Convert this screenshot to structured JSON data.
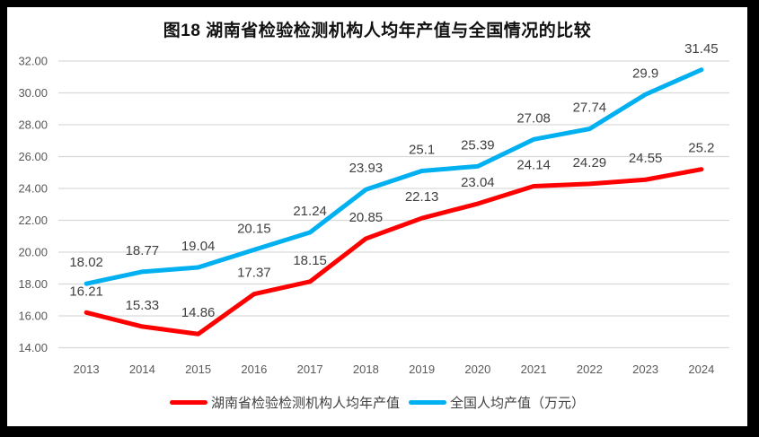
{
  "frame": {
    "background": "#000000",
    "content_background": "#ffffff"
  },
  "chart_data": {
    "type": "line",
    "title": "图18 湖南省检验检测机构人均年产值与全国情况的比较",
    "categories": [
      "2013",
      "2014",
      "2015",
      "2016",
      "2017",
      "2018",
      "2019",
      "2020",
      "2021",
      "2022",
      "2023",
      "2024"
    ],
    "series": [
      {
        "name": "湖南省检验检测机构人均年产值",
        "color": "#FF0000",
        "values": [
          16.21,
          15.33,
          14.86,
          17.37,
          18.15,
          20.85,
          22.13,
          23.04,
          24.14,
          24.29,
          24.55,
          25.2
        ]
      },
      {
        "name": "全国人均产值（万元）",
        "color": "#00B0F0",
        "values": [
          18.02,
          18.77,
          19.04,
          20.15,
          21.24,
          23.93,
          25.1,
          25.39,
          27.08,
          27.74,
          29.9,
          31.45
        ]
      }
    ],
    "xlabel": "",
    "ylabel": "",
    "ylim": [
      14,
      32
    ],
    "ytick_step": 2,
    "ytick_labels": [
      "14.00",
      "16.00",
      "18.00",
      "20.00",
      "22.00",
      "24.00",
      "26.00",
      "28.00",
      "30.00",
      "32.00"
    ],
    "grid": true,
    "data_labels": true,
    "legend_position": "bottom",
    "colors": {
      "gridline": "#D9D9D9",
      "axis_label": "#595959",
      "data_label": "#404040",
      "title": "#111111"
    }
  }
}
